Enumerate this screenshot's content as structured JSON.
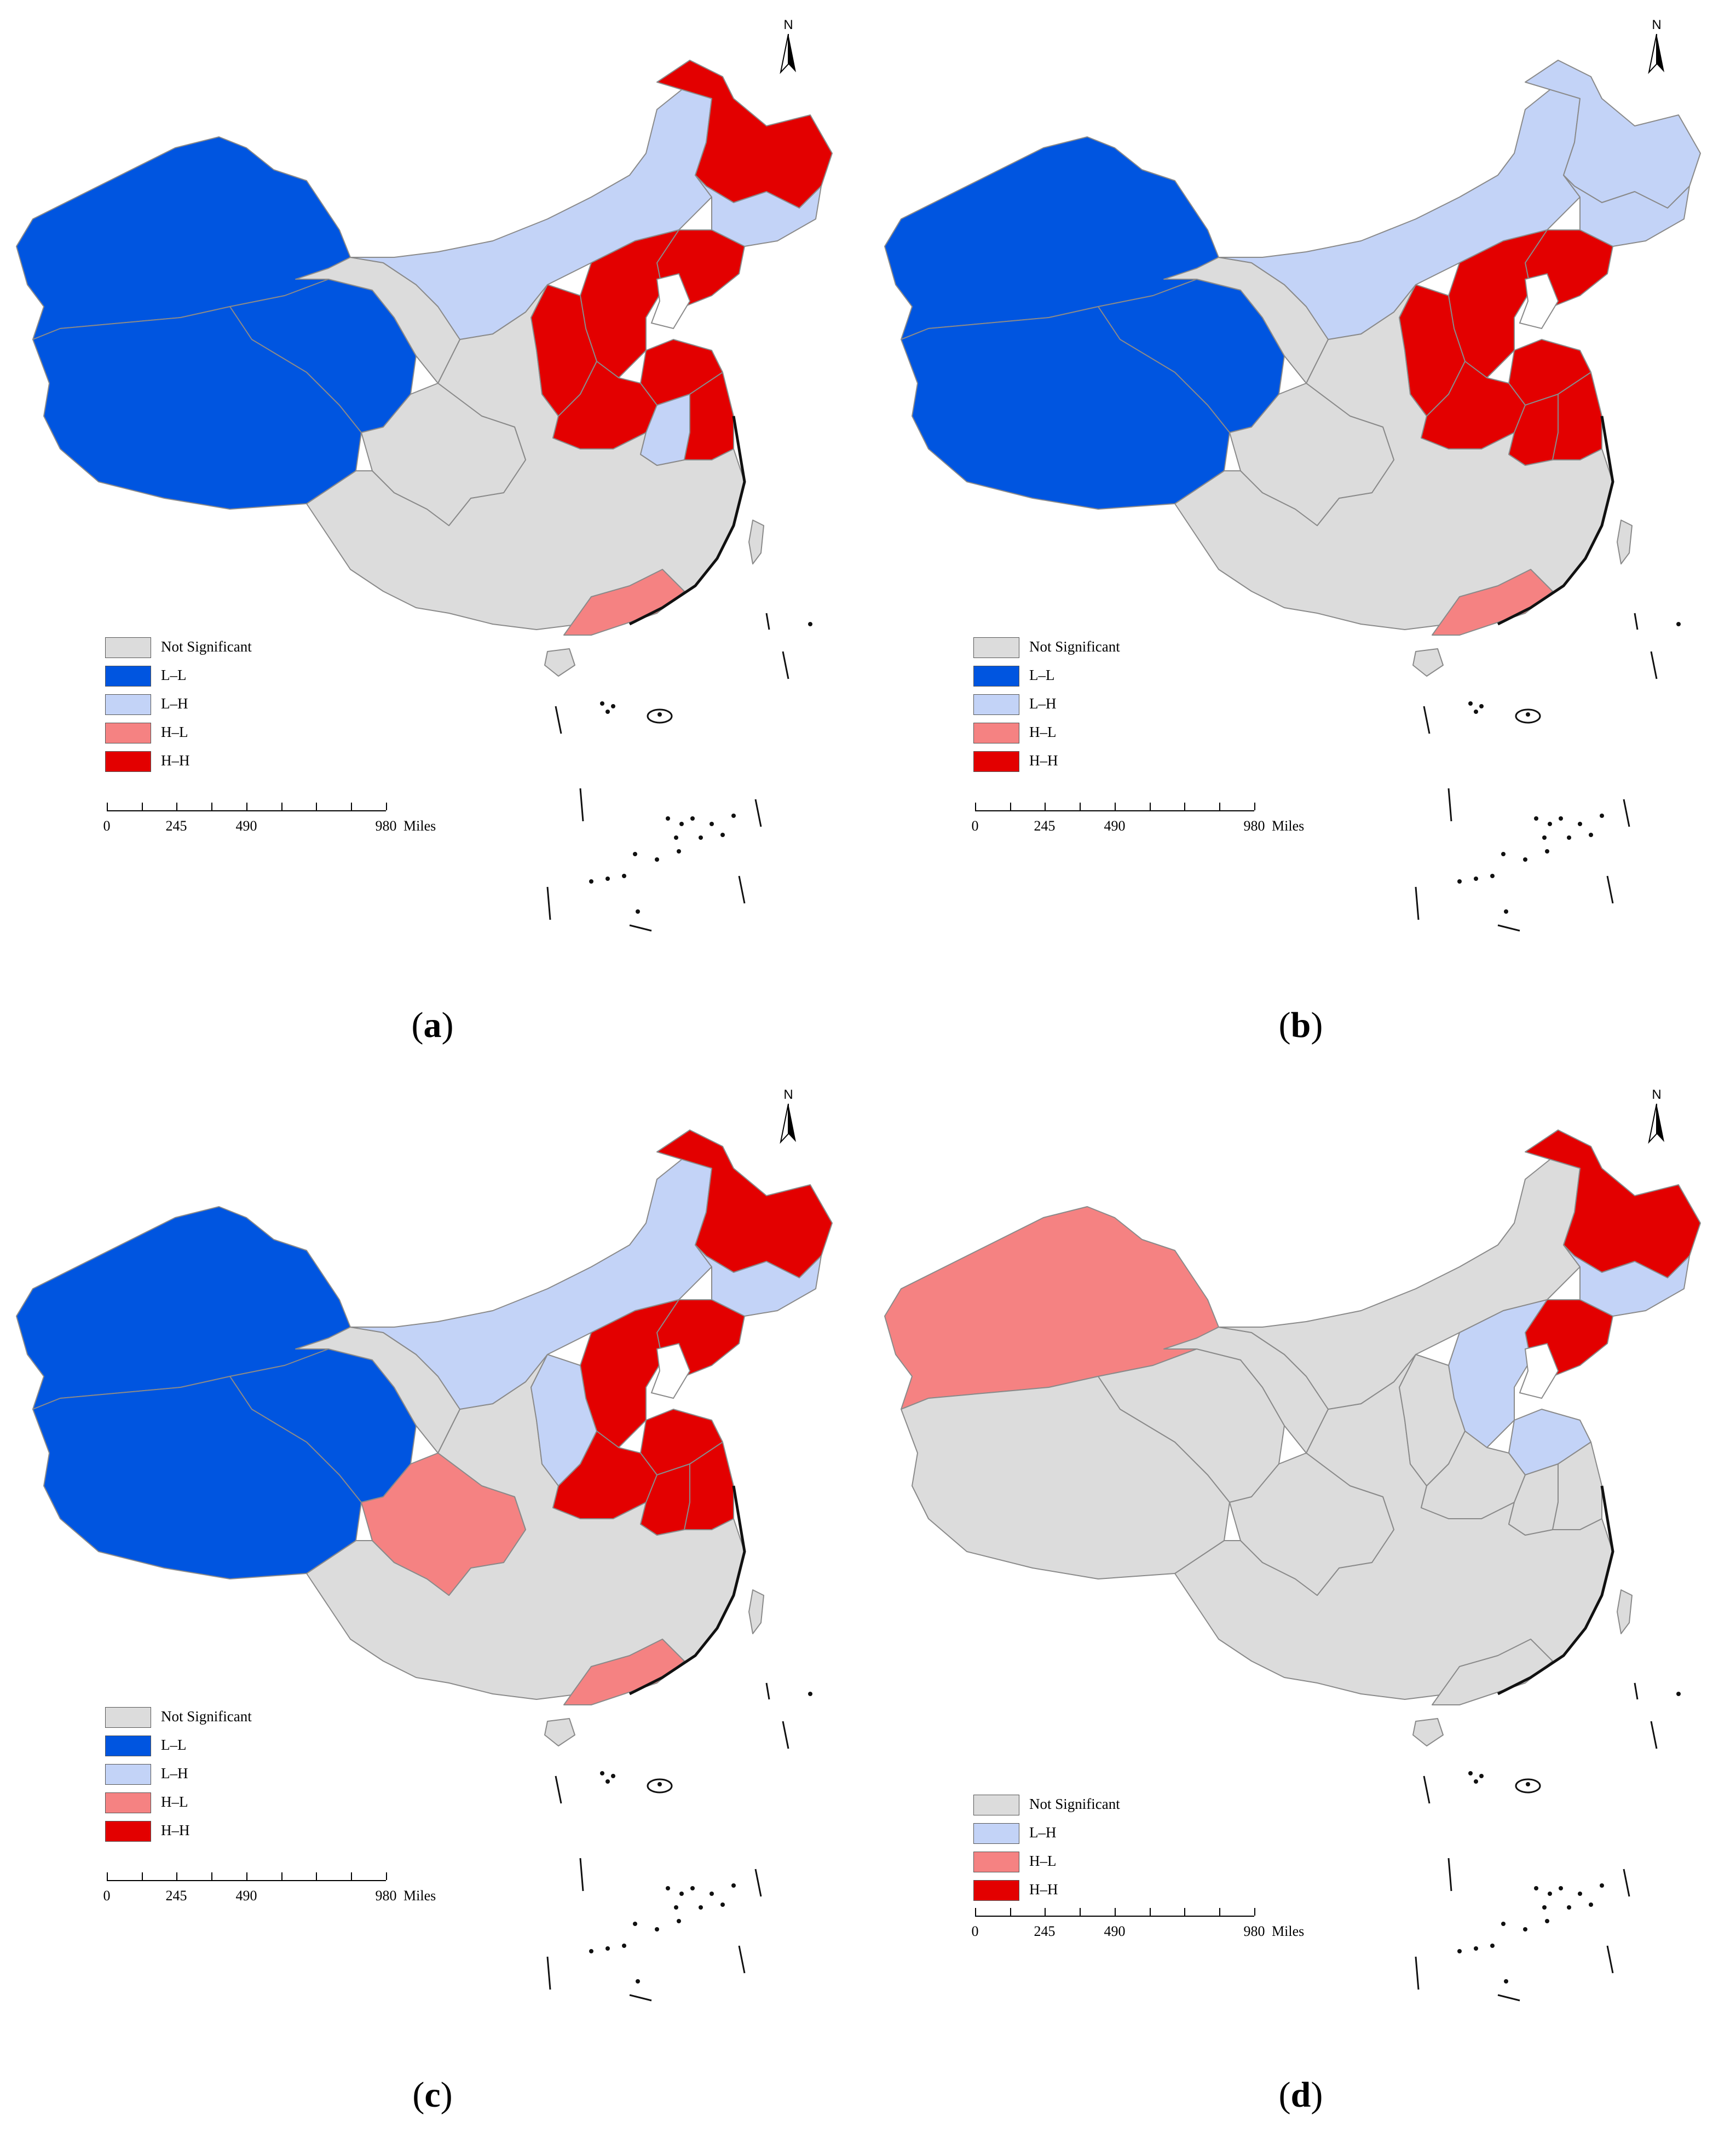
{
  "legend_colors": {
    "Not Significant": "#dcdcdc",
    "L–L": "#0055e0",
    "L–H": "#c3d3f7",
    "H–L": "#f58282",
    "H–H": "#e30000"
  },
  "north_label": "N",
  "scale": {
    "ticks": [
      "0",
      "245",
      "490",
      "980"
    ],
    "unit": "Miles"
  },
  "panels": [
    {
      "caption": "a",
      "legend": [
        {
          "label": "Not Significant",
          "color": "#dcdcdc"
        },
        {
          "label": "L–L",
          "color": "#0055e0"
        },
        {
          "label": "L–H",
          "color": "#c3d3f7"
        },
        {
          "label": "H–L",
          "color": "#f58282"
        },
        {
          "label": "H–H",
          "color": "#e30000"
        }
      ],
      "regions": {
        "xinjiang": "L–L",
        "tibet": "L–L",
        "qinghai": "L–L",
        "gansu": "Not Significant",
        "innermongolia": "L–H",
        "heilongjiang": "H–H",
        "jilin": "L–H",
        "liaoning": "H–H",
        "beijing_hebei": "H–H",
        "shandong": "H–H",
        "henan": "H–H",
        "shanxi": "H–H",
        "anhui": "L–H",
        "jiangsu": "H–H",
        "guangdong": "H–L",
        "sichuan": "Not Significant"
      }
    },
    {
      "caption": "b",
      "legend": [
        {
          "label": "Not Significant",
          "color": "#dcdcdc"
        },
        {
          "label": "L–L",
          "color": "#0055e0"
        },
        {
          "label": "L–H",
          "color": "#c3d3f7"
        },
        {
          "label": "H–L",
          "color": "#f58282"
        },
        {
          "label": "H–H",
          "color": "#e30000"
        }
      ],
      "regions": {
        "xinjiang": "L–L",
        "tibet": "L–L",
        "qinghai": "L–L",
        "gansu": "Not Significant",
        "innermongolia": "L–H",
        "heilongjiang": "L–H",
        "jilin": "L–H",
        "liaoning": "H–H",
        "beijing_hebei": "H–H",
        "shandong": "H–H",
        "henan": "H–H",
        "shanxi": "H–H",
        "anhui": "H–H",
        "jiangsu": "H–H",
        "guangdong": "H–L",
        "sichuan": "Not Significant"
      }
    },
    {
      "caption": "c",
      "legend": [
        {
          "label": "Not Significant",
          "color": "#dcdcdc"
        },
        {
          "label": "L–L",
          "color": "#0055e0"
        },
        {
          "label": "L–H",
          "color": "#c3d3f7"
        },
        {
          "label": "H–L",
          "color": "#f58282"
        },
        {
          "label": "H–H",
          "color": "#e30000"
        }
      ],
      "regions": {
        "xinjiang": "L–L",
        "tibet": "L–L",
        "qinghai": "L–L",
        "gansu": "Not Significant",
        "innermongolia": "L–H",
        "heilongjiang": "H–H",
        "jilin": "L–H",
        "liaoning": "H–H",
        "beijing_hebei": "H–H",
        "shandong": "H–H",
        "henan": "H–H",
        "shanxi": "L–H",
        "anhui": "H–H",
        "jiangsu": "H–H",
        "guangdong": "H–L",
        "sichuan": "H–L"
      }
    },
    {
      "caption": "d",
      "legend": [
        {
          "label": "Not Significant",
          "color": "#dcdcdc"
        },
        {
          "label": "L–H",
          "color": "#c3d3f7"
        },
        {
          "label": "H–L",
          "color": "#f58282"
        },
        {
          "label": "H–H",
          "color": "#e30000"
        }
      ],
      "regions": {
        "xinjiang": "H–L",
        "tibet": "Not Significant",
        "qinghai": "Not Significant",
        "gansu": "Not Significant",
        "innermongolia": "Not Significant",
        "heilongjiang": "H–H",
        "jilin": "L–H",
        "liaoning": "H–H",
        "beijing_hebei": "L–H",
        "shandong": "L–H",
        "henan": "Not Significant",
        "shanxi": "Not Significant",
        "anhui": "Not Significant",
        "jiangsu": "Not Significant",
        "guangdong": "Not Significant",
        "sichuan": "Not Significant"
      }
    }
  ]
}
